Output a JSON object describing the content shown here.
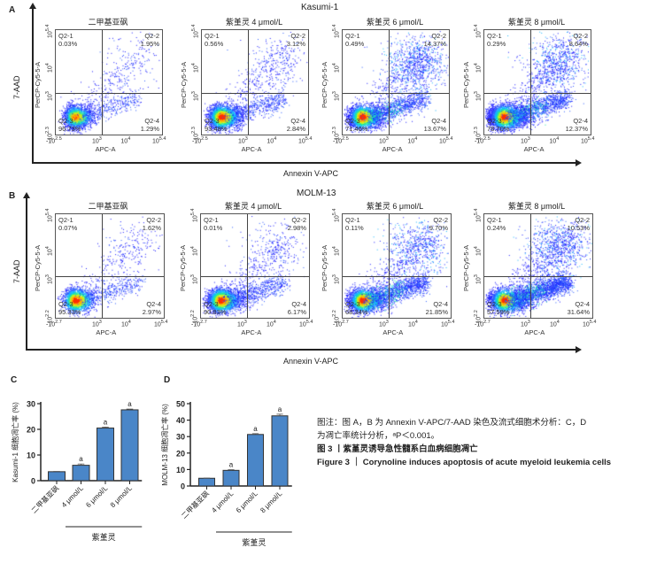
{
  "panel_A": {
    "letter": "A",
    "cell_line": "Kasumi-1",
    "y_axis_label": "7-AAD",
    "x_axis_label": "Annexin V-APC"
  },
  "panel_B": {
    "letter": "B",
    "cell_line": "MOLM-13",
    "y_axis_label": "7-AAD",
    "x_axis_label": "Annexin V-APC"
  },
  "caption": {
    "note_line1": "图注：图 A，B 为 Annexin V-APC/7-AAD 染色及流式细胞术分析：C，D",
    "note_line2": "为凋亡率统计分析，ᵃP＜0.001。",
    "fig_cn": "图 3 丨紫堇灵诱导急性髓系白血病细胞凋亡",
    "fig_en": "Figure 3  ｜ Corynoline induces apoptosis of acute myeloid leukemia cells"
  },
  "chart_data": [
    {
      "type": "scatter",
      "id": "A",
      "title": "Kasumi-1",
      "xlabel": "Annexin V-APC",
      "ylabel": "7-AAD",
      "plot_xlabel": "APC-A",
      "plot_ylabel": "PerCP-Cy5-5-A",
      "x_ticks": [
        "-10^2.5",
        "10^3",
        "10^4",
        "10^5.4"
      ],
      "y_ticks": [
        "-10^2.3",
        "10^3",
        "10^4",
        "10^5.4"
      ],
      "quadrant_labels": [
        "Q2-1",
        "Q2-2",
        "Q2-3",
        "Q2-4"
      ],
      "groups": [
        {
          "title": "二甲基亚砜",
          "Q2-1": "0.03%",
          "Q2-2": "1.95%",
          "Q2-3": "96.73%",
          "Q2-4": "1.29%"
        },
        {
          "title": "紫堇灵 4 μmol/L",
          "Q2-1": "0.56%",
          "Q2-2": "3.12%",
          "Q2-3": "93.48%",
          "Q2-4": "2.84%"
        },
        {
          "title": "紫堇灵 6 μmol/L",
          "Q2-1": "0.49%",
          "Q2-2": "14.37%",
          "Q2-3": "71.46%",
          "Q2-4": "13.67%"
        },
        {
          "title": "紫堇灵 8 μmol/L",
          "Q2-1": "0.29%",
          "Q2-2": "8.64%",
          "Q2-3": "78.70%",
          "Q2-4": "12.37%"
        }
      ]
    },
    {
      "type": "scatter",
      "id": "B",
      "title": "MOLM-13",
      "xlabel": "Annexin V-APC",
      "ylabel": "7-AAD",
      "plot_xlabel": "APC-A",
      "plot_ylabel": "PerCP-Cy5-5-A",
      "x_ticks": [
        "-10^2.7",
        "10^3",
        "10^4",
        "10^5.4"
      ],
      "y_ticks": [
        "-10^2.2",
        "10^3",
        "10^4",
        "10^5.4"
      ],
      "quadrant_labels": [
        "Q2-1",
        "Q2-2",
        "Q2-3",
        "Q2-4"
      ],
      "groups": [
        {
          "title": "二甲基亚砜",
          "Q2-1": "0.07%",
          "Q2-2": "1.62%",
          "Q2-3": "95.33%",
          "Q2-4": "2.97%"
        },
        {
          "title": "紫堇灵 4 μmol/L",
          "Q2-1": "0.01%",
          "Q2-2": "2.98%",
          "Q2-3": "90.83%",
          "Q2-4": "6.17%"
        },
        {
          "title": "紫堇灵 6 μmol/L",
          "Q2-1": "0.11%",
          "Q2-2": "9.70%",
          "Q2-3": "68.34%",
          "Q2-4": "21.85%"
        },
        {
          "title": "紫堇灵 8 μmol/L",
          "Q2-1": "0.24%",
          "Q2-2": "10.53%",
          "Q2-3": "57.59%",
          "Q2-4": "31.64%"
        }
      ]
    },
    {
      "type": "bar",
      "id": "C",
      "categories": [
        "二甲基亚砜",
        "4 μmol/L",
        "6 μmol/L",
        "8 μmol/L"
      ],
      "values": [
        3.5,
        6.0,
        20.5,
        27.6
      ],
      "errors": [
        0.1,
        0.5,
        0.4,
        0.3
      ],
      "significance": [
        "",
        "a",
        "a",
        "a"
      ],
      "ylabel": "Kasumi-1 细胞凋亡率 (%)",
      "group_label": "紫堇灵",
      "ylim": [
        0,
        30
      ],
      "yticks": [
        0,
        10,
        20,
        30
      ],
      "bar_color": "#4a86c8"
    },
    {
      "type": "bar",
      "id": "D",
      "categories": [
        "二甲基亚砜",
        "4 μmol/L",
        "6 μmol/L",
        "8 μmol/L"
      ],
      "values": [
        4.7,
        9.5,
        31.3,
        42.6
      ],
      "errors": [
        0.1,
        0.4,
        0.5,
        1.0
      ],
      "significance": [
        "",
        "a",
        "a",
        "a"
      ],
      "ylabel": "MOLM-13 细胞凋亡率 (%)",
      "group_label": "紫堇灵",
      "ylim": [
        0,
        50
      ],
      "yticks": [
        0,
        10,
        20,
        30,
        40,
        50
      ],
      "bar_color": "#4a86c8"
    }
  ]
}
